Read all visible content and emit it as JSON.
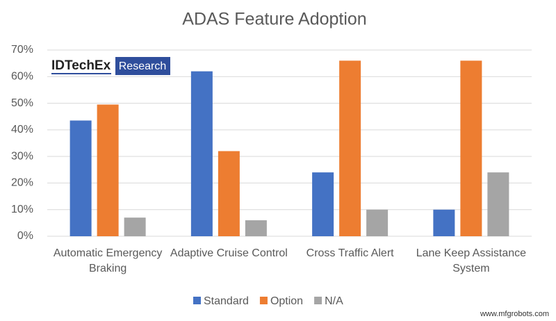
{
  "chart_data": {
    "type": "bar",
    "title": "ADAS Feature Adoption",
    "categories": [
      "Automatic Emergency Braking",
      "Adaptive Cruise Control",
      "Cross Traffic Alert",
      "Lane Keep Assistance System"
    ],
    "series": [
      {
        "name": "Standard",
        "color": "#4472c4",
        "values": [
          43.5,
          62,
          24,
          10
        ]
      },
      {
        "name": "Option",
        "color": "#ed7d31",
        "values": [
          49.5,
          32,
          66,
          66
        ]
      },
      {
        "name": "N/A",
        "color": "#a5a5a5",
        "values": [
          7,
          6,
          10,
          24
        ]
      }
    ],
    "ylim": [
      0,
      70
    ],
    "yticks": [
      {
        "value": 0,
        "label": "0%"
      },
      {
        "value": 10,
        "label": "10%"
      },
      {
        "value": 20,
        "label": "20%"
      },
      {
        "value": 30,
        "label": "30%"
      },
      {
        "value": 40,
        "label": "40%"
      },
      {
        "value": 50,
        "label": "50%"
      },
      {
        "value": 60,
        "label": "60%"
      },
      {
        "value": 70,
        "label": "70%"
      }
    ],
    "grid": true,
    "legend": "bottom"
  },
  "logo": {
    "brand": "IDTechEx",
    "tag": "Research"
  },
  "watermark": "www.mfgrobots.com"
}
